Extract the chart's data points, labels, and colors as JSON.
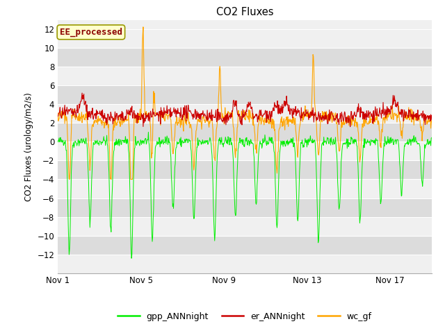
{
  "title": "CO2 Fluxes",
  "ylabel": "CO2 Fluxes (urology/m2/s)",
  "ylim": [
    -14,
    13
  ],
  "yticks": [
    -12,
    -10,
    -8,
    -6,
    -4,
    -2,
    0,
    2,
    4,
    6,
    8,
    10,
    12
  ],
  "xlim_days": [
    0,
    18
  ],
  "xtick_labels": [
    "Nov 1",
    "Nov 5",
    "Nov 9",
    "Nov 13",
    "Nov 17"
  ],
  "xtick_positions": [
    0,
    4,
    8,
    12,
    16
  ],
  "colors": {
    "gpp": "#00EE00",
    "er": "#CC0000",
    "wc": "#FFA500"
  },
  "legend_labels": [
    "gpp_ANNnight",
    "er_ANNnight",
    "wc_gf"
  ],
  "annotation_text": "EE_processed",
  "annotation_color": "#8B0000",
  "annotation_bg": "#FFFFCC",
  "annotation_border": "#999900",
  "plot_bg_light": "#F0F0F0",
  "plot_bg_dark": "#DCDCDC",
  "n_points": 864,
  "seed": 42
}
